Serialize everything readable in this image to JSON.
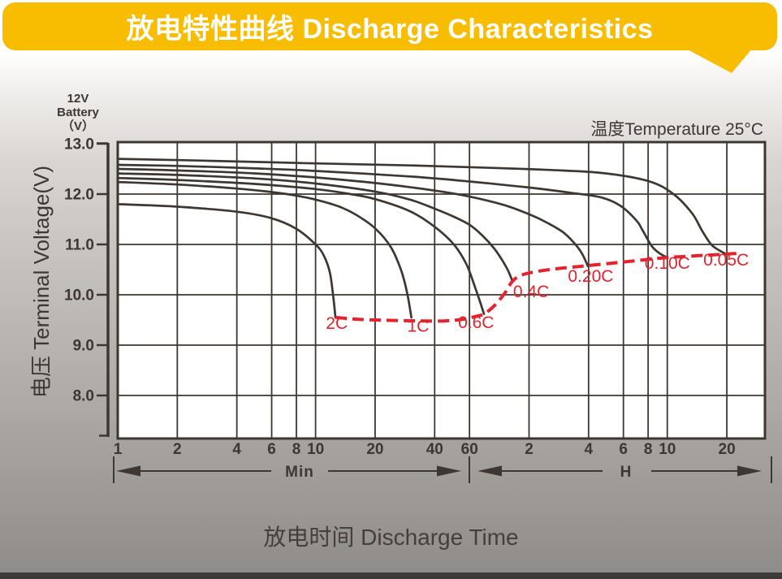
{
  "banner": {
    "title": "放电特性曲线 Discharge Characteristics"
  },
  "colors": {
    "banner_yellow": "#f8bc00",
    "ink": "#3e3731",
    "red": "#e4232e",
    "plot_bg": "#ffffff"
  },
  "battery_note": {
    "line1": "12V",
    "line2": "Battery",
    "line3": "（V）"
  },
  "temperature_note": "温度Temperature 25°C",
  "chart_data": {
    "type": "line",
    "title": "放电特性曲线 Discharge Characteristics",
    "xlabel": "放电时间 Discharge Time",
    "ylabel": "电压 Terminal Voltage(V)",
    "x_scale": "log",
    "x_unit_left": "Min",
    "x_unit_right": "H",
    "ylim": [
      7.1,
      13.0
    ],
    "xlim_minutes": [
      1,
      1880
    ],
    "grid": true,
    "x_ticks_minutes": {
      "labels": [
        "1",
        "2",
        "4",
        "6",
        "8",
        "10",
        "20",
        "40",
        "60"
      ],
      "t": [
        1,
        2,
        4,
        6,
        8,
        10,
        20,
        40,
        60
      ]
    },
    "x_ticks_hours": {
      "labels": [
        "2",
        "4",
        "6",
        "8",
        "10",
        "20"
      ],
      "t": [
        120,
        240,
        360,
        480,
        600,
        1200
      ]
    },
    "y_ticks": {
      "labels": [
        "13.0",
        "12.0",
        "11.0",
        "10.0",
        "9.0",
        "8.0"
      ],
      "v": [
        13,
        12,
        11,
        10,
        9,
        8
      ]
    },
    "series": [
      {
        "name": "2C",
        "label": "2C",
        "label_at": [
          12.8,
          9.32
        ],
        "points": [
          [
            1,
            11.8
          ],
          [
            2,
            11.75
          ],
          [
            4,
            11.65
          ],
          [
            6,
            11.52
          ],
          [
            8,
            11.31
          ],
          [
            10,
            11.0
          ],
          [
            11,
            10.78
          ],
          [
            11.8,
            10.45
          ],
          [
            12.3,
            9.95
          ],
          [
            12.6,
            9.55
          ]
        ]
      },
      {
        "name": "1C",
        "label": "1C",
        "label_at": [
          33,
          9.27
        ],
        "points": [
          [
            1,
            12.24
          ],
          [
            2,
            12.19
          ],
          [
            4,
            12.11
          ],
          [
            6,
            12.04
          ],
          [
            8,
            11.97
          ],
          [
            10,
            11.89
          ],
          [
            13,
            11.76
          ],
          [
            16,
            11.59
          ],
          [
            20,
            11.32
          ],
          [
            24,
            10.95
          ],
          [
            27,
            10.5
          ],
          [
            29,
            10.05
          ],
          [
            30.5,
            9.55
          ]
        ]
      },
      {
        "name": "0.6C",
        "label": "0.6C",
        "label_at": [
          64.8,
          9.34
        ],
        "points": [
          [
            1,
            12.32
          ],
          [
            2,
            12.28
          ],
          [
            5,
            12.2
          ],
          [
            10,
            12.1
          ],
          [
            15,
            12.0
          ],
          [
            20,
            11.9
          ],
          [
            30,
            11.66
          ],
          [
            40,
            11.35
          ],
          [
            50,
            11.0
          ],
          [
            58,
            10.6
          ],
          [
            64,
            10.15
          ],
          [
            68,
            9.85
          ],
          [
            71,
            9.62
          ]
        ]
      },
      {
        "name": "0.4C",
        "label": "0.4C",
        "label_at": [
          123,
          9.95
        ],
        "points": [
          [
            1,
            12.41
          ],
          [
            2,
            12.38
          ],
          [
            5,
            12.31
          ],
          [
            10,
            12.21
          ],
          [
            20,
            12.05
          ],
          [
            30,
            11.89
          ],
          [
            40,
            11.71
          ],
          [
            50,
            11.55
          ],
          [
            60,
            11.39
          ],
          [
            70,
            11.17
          ],
          [
            80,
            10.92
          ],
          [
            88,
            10.68
          ],
          [
            94,
            10.48
          ],
          [
            99,
            10.27
          ]
        ]
      },
      {
        "name": "0.20C",
        "label": "0.20C",
        "label_at": [
          246,
          10.26
        ],
        "points": [
          [
            1,
            12.5
          ],
          [
            2,
            12.47
          ],
          [
            5,
            12.41
          ],
          [
            10,
            12.33
          ],
          [
            20,
            12.22
          ],
          [
            40,
            12.07
          ],
          [
            60,
            11.95
          ],
          [
            90,
            11.78
          ],
          [
            120,
            11.6
          ],
          [
            150,
            11.42
          ],
          [
            180,
            11.23
          ],
          [
            210,
            10.96
          ],
          [
            225,
            10.78
          ],
          [
            238,
            10.57
          ]
        ]
      },
      {
        "name": "0.10C",
        "label": "0.10C",
        "label_at": [
          600,
          10.52
        ],
        "points": [
          [
            1,
            12.58
          ],
          [
            2,
            12.56
          ],
          [
            5,
            12.51
          ],
          [
            10,
            12.46
          ],
          [
            30,
            12.35
          ],
          [
            60,
            12.25
          ],
          [
            120,
            12.13
          ],
          [
            200,
            12.02
          ],
          [
            280,
            11.93
          ],
          [
            350,
            11.76
          ],
          [
            420,
            11.47
          ],
          [
            450,
            11.28
          ],
          [
            500,
            10.97
          ],
          [
            550,
            10.82
          ],
          [
            600,
            10.74
          ]
        ]
      },
      {
        "name": "0.05C",
        "label": "0.05C",
        "label_at": [
          1190,
          10.58
        ],
        "points": [
          [
            1,
            12.7
          ],
          [
            3,
            12.66
          ],
          [
            10,
            12.61
          ],
          [
            30,
            12.57
          ],
          [
            80,
            12.52
          ],
          [
            150,
            12.48
          ],
          [
            280,
            12.42
          ],
          [
            480,
            12.26
          ],
          [
            645,
            12.0
          ],
          [
            800,
            11.62
          ],
          [
            900,
            11.27
          ],
          [
            1000,
            11.0
          ],
          [
            1100,
            10.88
          ],
          [
            1200,
            10.8
          ]
        ]
      }
    ],
    "cutoff_line": {
      "name": "final-discharge-voltage",
      "style": "dashed",
      "points": [
        [
          12.6,
          9.55
        ],
        [
          17,
          9.51
        ],
        [
          25,
          9.49
        ],
        [
          35,
          9.48
        ],
        [
          45,
          9.48
        ],
        [
          55,
          9.51
        ],
        [
          63,
          9.56
        ],
        [
          71,
          9.62
        ],
        [
          80,
          9.78
        ],
        [
          90,
          10.02
        ],
        [
          99,
          10.27
        ],
        [
          110,
          10.39
        ],
        [
          130,
          10.46
        ],
        [
          160,
          10.51
        ],
        [
          200,
          10.55
        ],
        [
          240,
          10.58
        ],
        [
          300,
          10.62
        ],
        [
          400,
          10.67
        ],
        [
          500,
          10.71
        ],
        [
          600,
          10.74
        ],
        [
          800,
          10.77
        ],
        [
          1000,
          10.79
        ],
        [
          1200,
          10.81
        ],
        [
          1340,
          10.82
        ]
      ]
    },
    "xlabel_display": "放电时间 Discharge Time"
  }
}
